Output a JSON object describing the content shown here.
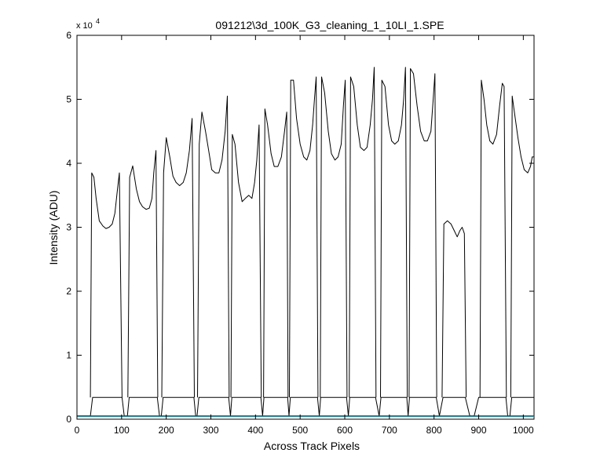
{
  "chart_data": {
    "type": "line",
    "title": "091212\\3d_100K_G3_cleaning_1_10LI_1.SPE",
    "xlabel": "Across Track Pixels",
    "ylabel": "Intensity (ADU)",
    "y_multiplier": {
      "base": "x 10",
      "exponent": "4"
    },
    "xlim": [
      0,
      1024
    ],
    "ylim": [
      0,
      60000
    ],
    "xticks": [
      0,
      100,
      200,
      300,
      400,
      500,
      600,
      700,
      800,
      900,
      1000
    ],
    "yticks": [
      0,
      1,
      2,
      3,
      4,
      5,
      6
    ],
    "grid": false,
    "series": [
      {
        "color": "#000000",
        "segments": [
          {
            "x": [
              30,
              33,
              38,
              43,
              50,
              58,
              65,
              72,
              79,
              85,
              90,
              95,
              101
            ],
            "y": [
              0.34,
              3.85,
              3.78,
              3.45,
              3.1,
              3.02,
              2.98,
              3.0,
              3.05,
              3.22,
              3.55,
              3.85,
              0.34
            ]
          },
          {
            "x": [
              114,
              118,
              125,
              133,
              140,
              147,
              155,
              162,
              168,
              172,
              177,
              181
            ],
            "y": [
              0.34,
              3.78,
              3.96,
              3.6,
              3.4,
              3.32,
              3.28,
              3.3,
              3.45,
              3.85,
              4.2,
              0.34
            ]
          },
          {
            "x": [
              190,
              194,
              200,
              208,
              215,
              222,
              230,
              238,
              245,
              252,
              258,
              263
            ],
            "y": [
              0.34,
              3.85,
              4.4,
              4.1,
              3.8,
              3.7,
              3.65,
              3.7,
              3.85,
              4.2,
              4.7,
              0.34
            ]
          },
          {
            "x": [
              270,
              274,
              280,
              288,
              295,
              302,
              310,
              318,
              325,
              332,
              337,
              341
            ],
            "y": [
              0.34,
              4.3,
              4.8,
              4.5,
              4.2,
              3.9,
              3.85,
              3.85,
              4.05,
              4.5,
              5.05,
              0.34
            ]
          },
          {
            "x": [
              345,
              348,
              354,
              362,
              370,
              377,
              385,
              392,
              398,
              403,
              408,
              413
            ],
            "y": [
              0.34,
              4.45,
              4.3,
              3.7,
              3.4,
              3.45,
              3.5,
              3.45,
              3.7,
              4.05,
              4.6,
              0.34
            ]
          },
          {
            "x": [
              418,
              421,
              427,
              435,
              442,
              450,
              458,
              465,
              470,
              473
            ],
            "y": [
              0.34,
              4.85,
              4.6,
              4.15,
              3.95,
              3.95,
              4.1,
              4.5,
              4.8,
              0.34
            ]
          },
          {
            "x": [
              476,
              479,
              485,
              492,
              500,
              508,
              515,
              522,
              528,
              532,
              536,
              540
            ],
            "y": [
              0.34,
              5.3,
              5.3,
              4.7,
              4.3,
              4.1,
              4.05,
              4.2,
              4.6,
              5.0,
              5.35,
              0.34
            ]
          },
          {
            "x": [
              545,
              548,
              555,
              563,
              570,
              578,
              585,
              592,
              597,
              601,
              605
            ],
            "y": [
              0.34,
              5.35,
              5.1,
              4.5,
              4.15,
              4.05,
              4.1,
              4.3,
              4.9,
              5.3,
              0.34
            ]
          },
          {
            "x": [
              610,
              613,
              620,
              628,
              635,
              643,
              650,
              657,
              662,
              666,
              670
            ],
            "y": [
              0.34,
              5.35,
              5.2,
              4.6,
              4.25,
              4.2,
              4.25,
              4.6,
              5.0,
              5.5,
              0.34
            ]
          },
          {
            "x": [
              680,
              683,
              690,
              698,
              705,
              712,
              720,
              727,
              732,
              736,
              740
            ],
            "y": [
              0.34,
              5.3,
              5.2,
              4.6,
              4.35,
              4.3,
              4.35,
              4.6,
              5.0,
              5.5,
              0.34
            ]
          },
          {
            "x": [
              744,
              747,
              754,
              762,
              770,
              778,
              785,
              793,
              798,
              802,
              806
            ],
            "y": [
              0.34,
              5.48,
              5.4,
              4.9,
              4.5,
              4.35,
              4.35,
              4.5,
              5.0,
              5.4,
              0.34
            ]
          },
          {
            "x": [
              818,
              822,
              830,
              838,
              845,
              852,
              858,
              863,
              868,
              872
            ],
            "y": [
              0.34,
              3.05,
              3.1,
              3.05,
              2.95,
              2.85,
              2.95,
              3.0,
              2.9,
              0.34
            ]
          },
          {
            "x": [
              903,
              906,
              912,
              918,
              925,
              932,
              940,
              947,
              953,
              957,
              962
            ],
            "y": [
              0.34,
              5.3,
              5.0,
              4.6,
              4.35,
              4.3,
              4.45,
              4.9,
              5.25,
              5.2,
              0.34
            ]
          },
          {
            "x": [
              972,
              975,
              980,
              988,
              995,
              1002,
              1010,
              1016,
              1020,
              1024
            ],
            "y": [
              0.34,
              5.05,
              4.8,
              4.4,
              4.1,
              3.9,
              3.85,
              3.95,
              4.1,
              4.1
            ]
          }
        ]
      },
      {
        "color": "#000000",
        "segments": [
          {
            "x": [
              0,
              30,
              35,
              101,
              106,
              113,
              117,
              180,
              185,
              189,
              193,
              262,
              266,
              269,
              273,
              340,
              344,
              347,
              412,
              416,
              419,
              472,
              475,
              478,
              539,
              543,
              546,
              604,
              608,
              611,
              669,
              677,
              681,
              739,
              742,
              745,
              805,
              812,
              820,
              870,
              880,
              890,
              900,
              905,
              961,
              965,
              970,
              974,
              1024
            ],
            "y": [
              0.05,
              0.05,
              0.34,
              0.34,
              0.05,
              0.05,
              0.34,
              0.34,
              0.05,
              0.05,
              0.34,
              0.34,
              0.05,
              0.05,
              0.34,
              0.34,
              0.05,
              0.34,
              0.34,
              0.05,
              0.34,
              0.34,
              0.05,
              0.34,
              0.34,
              0.05,
              0.34,
              0.34,
              0.05,
              0.34,
              0.34,
              0.05,
              0.34,
              0.34,
              0.05,
              0.34,
              0.34,
              0.05,
              0.34,
              0.34,
              0.05,
              0.05,
              0.34,
              0.34,
              0.34,
              0.05,
              0.05,
              0.34,
              0.34
            ]
          }
        ]
      },
      {
        "color": "#1a8fd0",
        "segments": [
          {
            "x": [
              0,
              1024
            ],
            "y": [
              0.048,
              0.048
            ]
          }
        ]
      },
      {
        "color": "#2aa889",
        "segments": [
          {
            "x": [
              0,
              1024
            ],
            "y": [
              0.042,
              0.042
            ]
          }
        ]
      },
      {
        "color": "#1f3a93",
        "segments": [
          {
            "x": [
              0,
              1024
            ],
            "y": [
              0.052,
              0.052
            ]
          }
        ]
      }
    ]
  }
}
